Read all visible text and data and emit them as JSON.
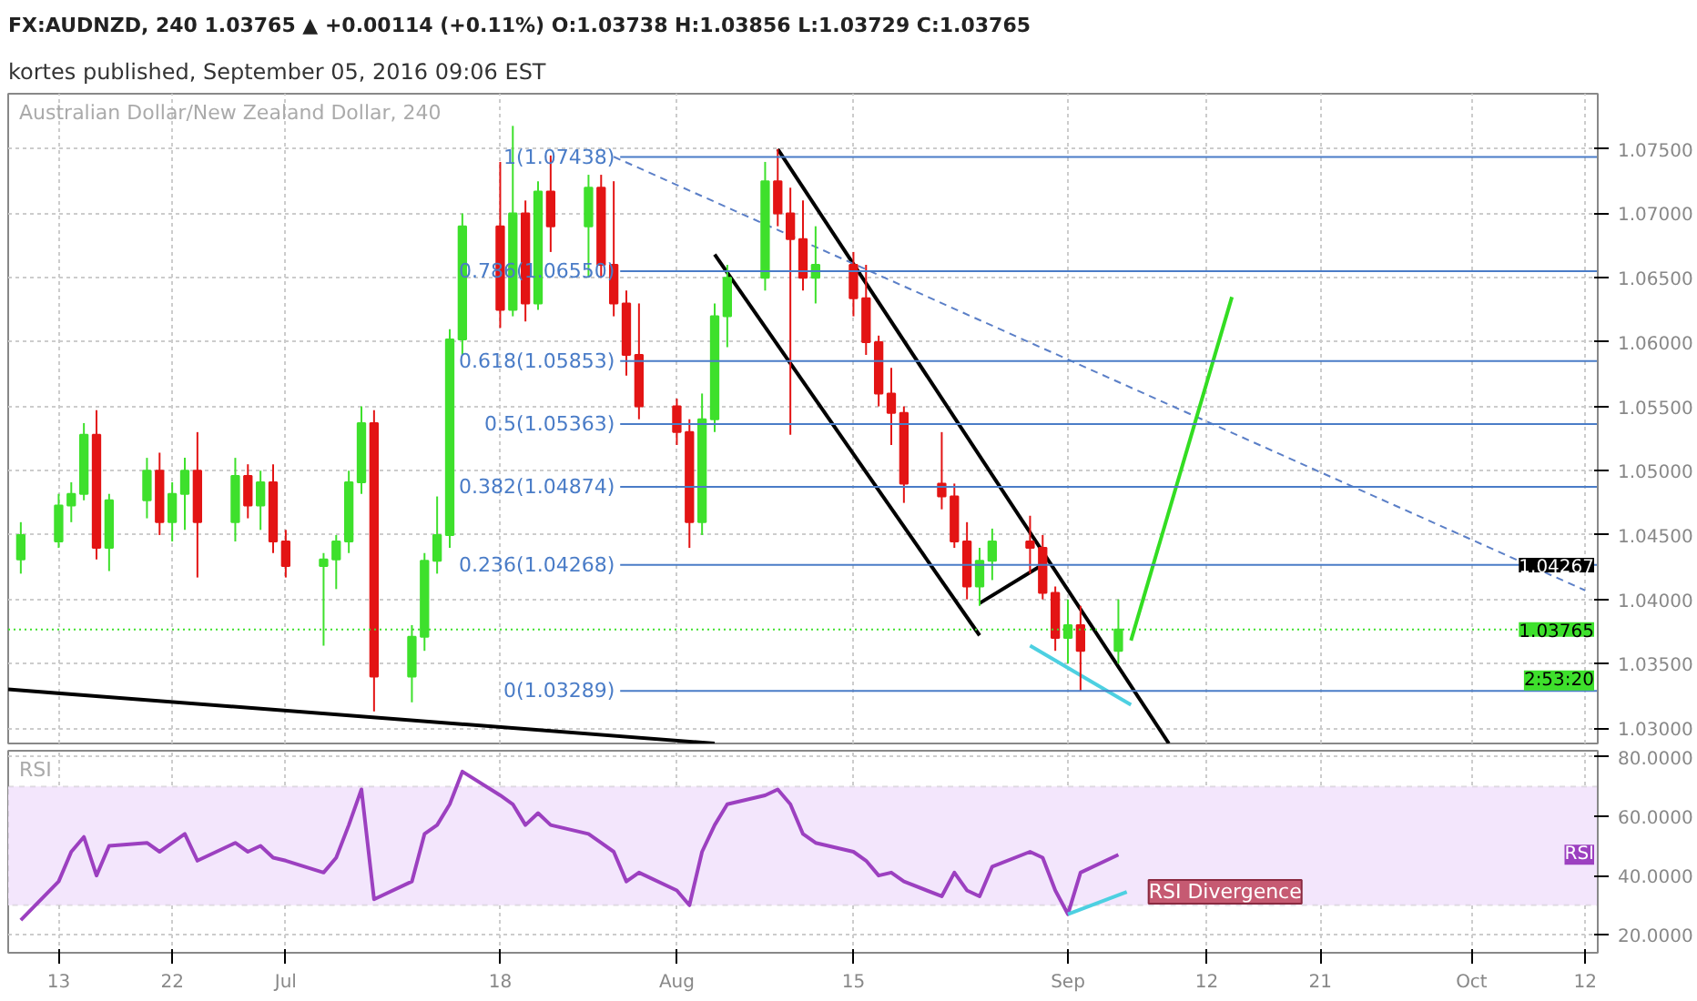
{
  "chart_data": [
    {
      "type": "candlestick",
      "title": "Australian Dollar/New Zealand Dollar, 240",
      "subtitle": "FX:AUDNZD, 240 1.03765 ▲ +0.00114 (+0.11%) O:1.03738 H:1.03856 L:1.03729 C:1.03765",
      "annotations": [
        "kortes published, September 05, 2016 09:06 EST",
        {
          "text": "1.04267",
          "y": 1.04267
        },
        "2:53:20"
      ],
      "x": [
        "2016-06-10",
        "2016-06-13",
        "2016-06-14",
        "2016-06-15",
        "2016-06-16",
        "2016-06-17",
        "2016-06-20",
        "2016-06-21",
        "2016-06-22",
        "2016-06-23",
        "2016-06-24",
        "2016-06-27",
        "2016-06-28",
        "2016-06-29",
        "2016-06-30",
        "2016-07-01",
        "2016-07-04",
        "2016-07-05",
        "2016-07-06",
        "2016-07-07",
        "2016-07-08",
        "2016-07-11",
        "2016-07-12",
        "2016-07-13",
        "2016-07-14",
        "2016-07-15",
        "2016-07-18",
        "2016-07-19",
        "2016-07-20",
        "2016-07-21",
        "2016-07-22",
        "2016-07-25",
        "2016-07-26",
        "2016-07-27",
        "2016-07-28",
        "2016-07-29",
        "2016-08-01",
        "2016-08-02",
        "2016-08-03",
        "2016-08-04",
        "2016-08-05",
        "2016-08-08",
        "2016-08-09",
        "2016-08-10",
        "2016-08-11",
        "2016-08-12",
        "2016-08-15",
        "2016-08-16",
        "2016-08-17",
        "2016-08-18",
        "2016-08-19",
        "2016-08-22",
        "2016-08-23",
        "2016-08-24",
        "2016-08-25",
        "2016-08-26",
        "2016-08-29",
        "2016-08-30",
        "2016-08-31",
        "2016-09-01",
        "2016-09-02",
        "2016-09-05"
      ],
      "ohlc": [
        [
          1.0431,
          1.046,
          1.042,
          1.045
        ],
        [
          1.0445,
          1.0482,
          1.044,
          1.0473
        ],
        [
          1.0473,
          1.0491,
          1.046,
          1.0482
        ],
        [
          1.0482,
          1.0537,
          1.0477,
          1.0528
        ],
        [
          1.0528,
          1.0547,
          1.0431,
          1.044
        ],
        [
          1.044,
          1.0482,
          1.0422,
          1.0477
        ],
        [
          1.0477,
          1.051,
          1.0463,
          1.05
        ],
        [
          1.05,
          1.0514,
          1.045,
          1.046
        ],
        [
          1.046,
          1.0491,
          1.0445,
          1.0482
        ],
        [
          1.0482,
          1.051,
          1.0454,
          1.05
        ],
        [
          1.05,
          1.053,
          1.0417,
          1.046
        ],
        [
          1.046,
          1.051,
          1.0445,
          1.0496
        ],
        [
          1.0496,
          1.0505,
          1.0463,
          1.0473
        ],
        [
          1.0473,
          1.05,
          1.0454,
          1.0491
        ],
        [
          1.0491,
          1.0505,
          1.0436,
          1.0445
        ],
        [
          1.0445,
          1.0454,
          1.0417,
          1.0426
        ],
        [
          1.0426,
          1.0436,
          1.0364,
          1.0431
        ],
        [
          1.0431,
          1.045,
          1.0408,
          1.0445
        ],
        [
          1.0445,
          1.05,
          1.0436,
          1.0491
        ],
        [
          1.0491,
          1.055,
          1.0482,
          1.0537
        ],
        [
          1.0537,
          1.0547,
          1.0313,
          1.034
        ],
        [
          1.034,
          1.038,
          1.032,
          1.0371
        ],
        [
          1.0371,
          1.0436,
          1.036,
          1.043
        ],
        [
          1.043,
          1.048,
          1.042,
          1.045
        ],
        [
          1.045,
          1.061,
          1.044,
          1.0602
        ],
        [
          1.0602,
          1.07,
          1.059,
          1.069
        ],
        [
          1.069,
          1.074,
          1.0611,
          1.0625
        ],
        [
          1.0625,
          1.0768,
          1.062,
          1.07
        ],
        [
          1.07,
          1.071,
          1.0616,
          1.063
        ],
        [
          1.063,
          1.0725,
          1.0625,
          1.0717
        ],
        [
          1.0717,
          1.0745,
          1.067,
          1.069
        ],
        [
          1.069,
          1.073,
          1.065,
          1.072
        ],
        [
          1.072,
          1.073,
          1.065,
          1.066
        ],
        [
          1.066,
          1.0725,
          1.062,
          1.063
        ],
        [
          1.063,
          1.064,
          1.0574,
          1.059
        ],
        [
          1.059,
          1.063,
          1.054,
          1.055
        ],
        [
          1.055,
          1.0556,
          1.052,
          1.053
        ],
        [
          1.053,
          1.054,
          1.044,
          1.046
        ],
        [
          1.046,
          1.056,
          1.045,
          1.054
        ],
        [
          1.054,
          1.063,
          1.053,
          1.062
        ],
        [
          1.062,
          1.066,
          1.0596,
          1.065
        ],
        [
          1.065,
          1.074,
          1.064,
          1.0725
        ],
        [
          1.0725,
          1.075,
          1.069,
          1.07
        ],
        [
          1.07,
          1.072,
          1.0528,
          1.068
        ],
        [
          1.068,
          1.071,
          1.064,
          1.065
        ],
        [
          1.065,
          1.069,
          1.063,
          1.066
        ],
        [
          1.066,
          1.067,
          1.062,
          1.0634
        ],
        [
          1.0634,
          1.066,
          1.059,
          1.06
        ],
        [
          1.06,
          1.0605,
          1.055,
          1.056
        ],
        [
          1.056,
          1.058,
          1.052,
          1.0545
        ],
        [
          1.0545,
          1.055,
          1.0475,
          1.049
        ],
        [
          1.049,
          1.053,
          1.047,
          1.048
        ],
        [
          1.048,
          1.049,
          1.044,
          1.0445
        ],
        [
          1.0445,
          1.046,
          1.04,
          1.041
        ],
        [
          1.041,
          1.044,
          1.0395,
          1.043
        ],
        [
          1.043,
          1.0455,
          1.0415,
          1.0445
        ],
        [
          1.0445,
          1.0465,
          1.042,
          1.044
        ],
        [
          1.044,
          1.045,
          1.04,
          1.0405
        ],
        [
          1.0405,
          1.041,
          1.036,
          1.037
        ],
        [
          1.037,
          1.04,
          1.035,
          1.038
        ],
        [
          1.038,
          1.0395,
          1.0329,
          1.036
        ],
        [
          1.036,
          1.04,
          1.035,
          1.03765
        ]
      ],
      "colors": [
        "#3ee02c",
        "#3ee02c",
        "#3ee02c",
        "#3ee02c",
        "#e31414",
        "#3ee02c",
        "#3ee02c",
        "#e31414",
        "#3ee02c",
        "#3ee02c",
        "#e31414",
        "#3ee02c",
        "#e31414",
        "#3ee02c",
        "#e31414",
        "#e31414",
        "#3ee02c",
        "#3ee02c",
        "#3ee02c",
        "#3ee02c",
        "#e31414",
        "#3ee02c",
        "#3ee02c",
        "#3ee02c",
        "#3ee02c",
        "#3ee02c",
        "#e31414",
        "#3ee02c",
        "#e31414",
        "#3ee02c",
        "#e31414",
        "#3ee02c",
        "#e31414",
        "#e31414",
        "#e31414",
        "#e31414",
        "#e31414",
        "#e31414",
        "#3ee02c",
        "#3ee02c",
        "#3ee02c",
        "#3ee02c",
        "#e31414",
        "#e31414",
        "#e31414",
        "#3ee02c",
        "#e31414",
        "#e31414",
        "#e31414",
        "#e31414",
        "#e31414",
        "#e31414",
        "#e31414",
        "#e31414",
        "#3ee02c",
        "#3ee02c",
        "#e31414",
        "#e31414",
        "#e31414",
        "#3ee02c",
        "#e31414",
        "#3ee02c"
      ],
      "series": [
        {
          "type": "line",
          "color": "#000000",
          "x": [
            "2016-08-09",
            "2016-09-09"
          ],
          "values": [
            1.075,
            1.0288
          ]
        },
        {
          "type": "line",
          "color": "#000000",
          "x": [
            "2016-08-04",
            "2016-08-25"
          ],
          "values": [
            1.0668,
            1.0372
          ]
        },
        {
          "type": "line",
          "color": "#000000",
          "x": [
            "2016-08-25",
            "2016-08-30"
          ],
          "values": [
            1.0397,
            1.0427
          ]
        },
        {
          "type": "line",
          "color": "#000000",
          "x": [
            "2016-06-09",
            "2016-08-04"
          ],
          "values": [
            1.033,
            1.0288
          ]
        },
        {
          "type": "line",
          "color": "#5b7fc7",
          "line_style": "dashed",
          "x": [
            "2016-07-27",
            "2016-10-12"
          ],
          "values": [
            1.0744,
            1.0407
          ]
        },
        {
          "type": "line",
          "color": "#4dd0e1",
          "x": [
            "2016-08-29",
            "2016-09-06"
          ],
          "values": [
            1.0364,
            1.0318
          ]
        },
        {
          "type": "line",
          "color": "#33dd22",
          "x": [
            "2016-09-06",
            "2016-09-14"
          ],
          "values": [
            1.0368,
            1.0635
          ]
        }
      ],
      "ref_lines": [
        {
          "axis": "y",
          "value": 1.07438,
          "label": "1(1.07438)",
          "color": "#4a7cc7"
        },
        {
          "axis": "y",
          "value": 1.0655,
          "label": "0.786(1.06550)",
          "color": "#4a7cc7"
        },
        {
          "axis": "y",
          "value": 1.05853,
          "label": "0.618(1.05853)",
          "color": "#4a7cc7"
        },
        {
          "axis": "y",
          "value": 1.05363,
          "label": "0.5(1.05363)",
          "color": "#4a7cc7"
        },
        {
          "axis": "y",
          "value": 1.04874,
          "label": "0.382(1.04874)",
          "color": "#4a7cc7"
        },
        {
          "axis": "y",
          "value": 1.04268,
          "label": "0.236(1.04268)",
          "color": "#4a7cc7"
        },
        {
          "axis": "y",
          "value": 1.03289,
          "label": "0(1.03289)",
          "color": "#4a7cc7"
        },
        {
          "axis": "y",
          "value": 1.03765,
          "label": "1.03765",
          "color": "#3ee02c",
          "line_style": "dotted"
        }
      ],
      "xlim": [
        "2016-06-09",
        "2016-10-13"
      ],
      "xticks": [
        {
          "value": "2016-06-13",
          "label": null
        },
        {
          "value": "2016-06-22",
          "label": null
        },
        {
          "value": "2016-07-01",
          "label": null
        },
        {
          "value": "2016-07-18",
          "label": null
        },
        {
          "value": "2016-08-01",
          "label": null
        },
        {
          "value": "2016-08-15",
          "label": null
        },
        {
          "value": "2016-09-01",
          "label": null
        },
        {
          "value": "2016-09-12",
          "label": null
        },
        {
          "value": "2016-09-21",
          "label": null
        },
        {
          "value": "2016-10-03",
          "label": null
        },
        {
          "value": "2016-10-12",
          "label": null
        }
      ],
      "ylim": [
        1.0288,
        1.0793
      ],
      "yticks": [
        {
          "value": 1.03,
          "label": "1.03000"
        },
        {
          "value": 1.035,
          "label": "1.03500"
        },
        {
          "value": 1.04,
          "label": "1.04000"
        },
        {
          "value": 1.045,
          "label": "1.04500"
        },
        {
          "value": 1.05,
          "label": "1.05000"
        },
        {
          "value": 1.055,
          "label": "1.05500"
        },
        {
          "value": 1.06,
          "label": "1.06000"
        },
        {
          "value": 1.065,
          "label": "1.06500"
        },
        {
          "value": 1.07,
          "label": "1.07000"
        },
        {
          "value": 1.075,
          "label": "1.07500"
        }
      ],
      "grid": true,
      "tick_labels": "y"
    },
    {
      "type": "line",
      "title": "RSI",
      "x": [
        "2016-06-10",
        "2016-06-13",
        "2016-06-14",
        "2016-06-15",
        "2016-06-16",
        "2016-06-17",
        "2016-06-20",
        "2016-06-21",
        "2016-06-22",
        "2016-06-23",
        "2016-06-24",
        "2016-06-27",
        "2016-06-28",
        "2016-06-29",
        "2016-06-30",
        "2016-07-01",
        "2016-07-04",
        "2016-07-05",
        "2016-07-06",
        "2016-07-07",
        "2016-07-08",
        "2016-07-11",
        "2016-07-12",
        "2016-07-13",
        "2016-07-14",
        "2016-07-15",
        "2016-07-18",
        "2016-07-19",
        "2016-07-20",
        "2016-07-21",
        "2016-07-22",
        "2016-07-25",
        "2016-07-26",
        "2016-07-27",
        "2016-07-28",
        "2016-07-29",
        "2016-08-01",
        "2016-08-02",
        "2016-08-03",
        "2016-08-04",
        "2016-08-05",
        "2016-08-08",
        "2016-08-09",
        "2016-08-10",
        "2016-08-11",
        "2016-08-12",
        "2016-08-15",
        "2016-08-16",
        "2016-08-17",
        "2016-08-18",
        "2016-08-19",
        "2016-08-22",
        "2016-08-23",
        "2016-08-24",
        "2016-08-25",
        "2016-08-26",
        "2016-08-29",
        "2016-08-30",
        "2016-08-31",
        "2016-09-01",
        "2016-09-02",
        "2016-09-05"
      ],
      "series": [
        {
          "color": "#9c40c0",
          "values": [
            25,
            38,
            48,
            53,
            40,
            50,
            51,
            48,
            51,
            54,
            45,
            51,
            48,
            50,
            46,
            45,
            41,
            46,
            57,
            69,
            32,
            38,
            54,
            57,
            64,
            75,
            67,
            64,
            57,
            61,
            57,
            54,
            51,
            48,
            38,
            41,
            35,
            30,
            48,
            57,
            64,
            67,
            69,
            64,
            54,
            51,
            48,
            45,
            40,
            41,
            38,
            33,
            41,
            35,
            33,
            43,
            48,
            46,
            35,
            27,
            41,
            47
          ]
        },
        {
          "color": "#4dd0e1",
          "x": [
            "2016-09-01",
            "2016-09-05T16:00"
          ],
          "values": [
            27,
            34.5
          ]
        }
      ],
      "bands": [
        {
          "axis": "y",
          "from": 30,
          "to": 70,
          "color": "#f3e6fc"
        }
      ],
      "annotations": [
        "RSI Divergence",
        "RSI"
      ],
      "xlim": [
        "2016-06-09",
        "2016-10-13"
      ],
      "xticks": [
        {
          "value": "2016-06-13",
          "label": "13"
        },
        {
          "value": "2016-06-22",
          "label": "22"
        },
        {
          "value": "2016-07-01",
          "label": "Jul"
        },
        {
          "value": "2016-07-18",
          "label": "18"
        },
        {
          "value": "2016-08-01",
          "label": "Aug"
        },
        {
          "value": "2016-08-15",
          "label": "15"
        },
        {
          "value": "2016-09-01",
          "label": "Sep"
        },
        {
          "value": "2016-09-12",
          "label": "12"
        },
        {
          "value": "2016-09-21",
          "label": "21"
        },
        {
          "value": "2016-10-03",
          "label": "Oct"
        },
        {
          "value": "2016-10-12",
          "label": "12"
        }
      ],
      "ylim": [
        14,
        82
      ],
      "yticks": [
        {
          "value": 20,
          "label": "20.0000"
        },
        {
          "value": 40,
          "label": "40.0000"
        },
        {
          "value": 60,
          "label": "60.0000"
        },
        {
          "value": 80,
          "label": "80.0000"
        }
      ],
      "grid": true
    }
  ]
}
